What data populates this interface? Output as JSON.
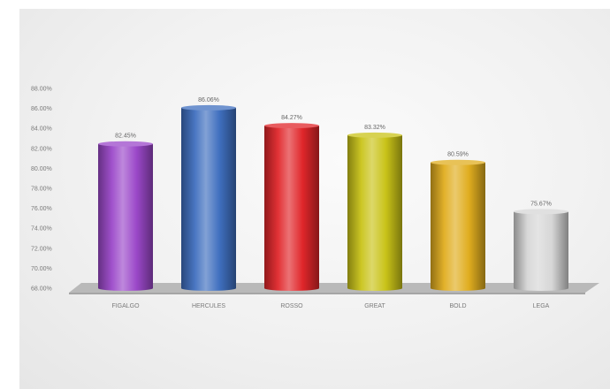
{
  "chart_data": {
    "type": "bar",
    "categories": [
      "FIGALGO",
      "HERCULES",
      "ROSSO",
      "GREAT",
      "BOLD",
      "LEGA"
    ],
    "values": [
      82.45,
      86.06,
      84.27,
      83.32,
      80.59,
      75.67
    ],
    "data_labels": [
      "82.45%",
      "86.06%",
      "84.27%",
      "83.32%",
      "80.59%",
      "75.67%"
    ],
    "colors": [
      "#9b48c9",
      "#3f6fbf",
      "#e0262a",
      "#c9c318",
      "#e0ad1f",
      "#d6d6d6"
    ],
    "ylim": [
      68,
      88
    ],
    "y_ticks": [
      68,
      70,
      72,
      74,
      76,
      78,
      80,
      82,
      84,
      86,
      88
    ],
    "y_tick_labels": [
      "68.00%",
      "70.00%",
      "72.00%",
      "74.00%",
      "76.00%",
      "78.00%",
      "80.00%",
      "82.00%",
      "84.00%",
      "86.00%",
      "88.00%"
    ],
    "title": "",
    "xlabel": "",
    "ylabel": "",
    "grid": false,
    "legend": "none"
  }
}
